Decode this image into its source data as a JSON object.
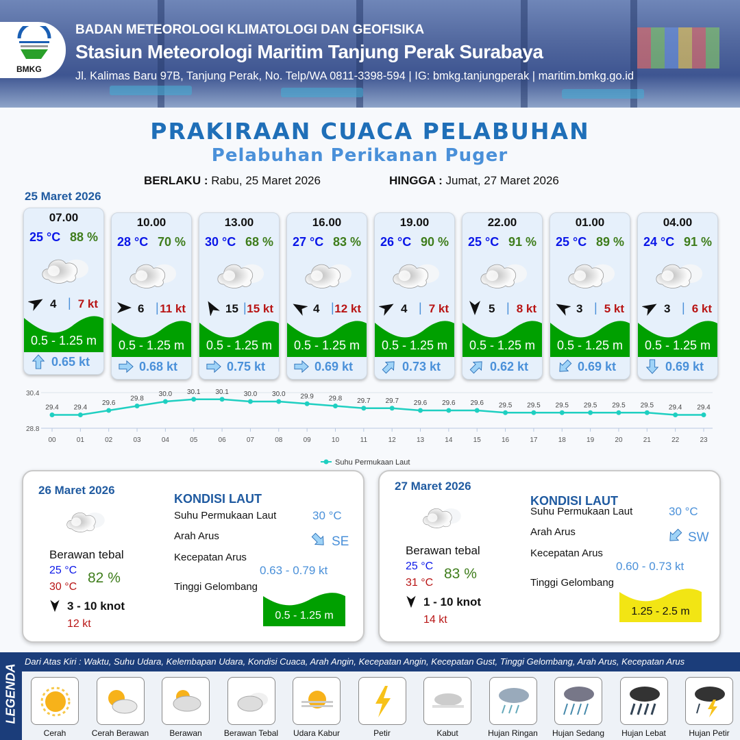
{
  "header": {
    "org": "BADAN METEOROLOGI KLIMATOLOGI DAN GEOFISIKA",
    "station": "Stasiun Meteorologi Maritim Tanjung Perak Surabaya",
    "address": "Jl. Kalimas Baru 97B, Tanjung Perak, No. Telp/WA 0811-3398-594 | IG: bmkg.tanjungperak | maritim.bmkg.go.id",
    "logo_text": "BMKG"
  },
  "title": "PRAKIRAAN CUACA PELABUHAN",
  "subtitle": "Pelabuhan Perikanan Puger",
  "validity": {
    "from_label": "BERLAKU :",
    "from": "Rabu, 25 Maret 2026",
    "to_label": "HINGGA :",
    "to": "Jumat, 27 Maret 2026"
  },
  "day1": {
    "date": "25 Maret 2026",
    "cards": [
      {
        "time": "07.00",
        "temp": "25 °C",
        "hum": "88 %",
        "cond": "Berawan Tebal",
        "wind_dir_deg": 60,
        "wind": "4",
        "gust": "7 kt",
        "wave": "0.5 - 1.25 m",
        "cur_dir_deg": 0,
        "cur": "0.65 kt"
      },
      {
        "time": "10.00",
        "temp": "28 °C",
        "hum": "70 %",
        "cond": "Berawan Tebal",
        "wind_dir_deg": 90,
        "wind": "6",
        "gust": "11 kt",
        "wave": "0.5 - 1.25 m",
        "cur_dir_deg": 90,
        "cur": "0.68 kt"
      },
      {
        "time": "13.00",
        "temp": "30 °C",
        "hum": "68 %",
        "cond": "Berawan Tebal",
        "wind_dir_deg": -30,
        "wind": "15",
        "gust": "15 kt",
        "wave": "0.5 - 1.25 m",
        "cur_dir_deg": 90,
        "cur": "0.75 kt"
      },
      {
        "time": "16.00",
        "temp": "27 °C",
        "hum": "83 %",
        "cond": "Berawan Tebal",
        "wind_dir_deg": -60,
        "wind": "4",
        "gust": "12 kt",
        "wave": "0.5 - 1.25 m",
        "cur_dir_deg": 90,
        "cur": "0.69 kt"
      },
      {
        "time": "19.00",
        "temp": "26 °C",
        "hum": "90 %",
        "cond": "Berawan Tebal",
        "wind_dir_deg": 60,
        "wind": "4",
        "gust": "7 kt",
        "wave": "0.5 - 1.25 m",
        "cur_dir_deg": 45,
        "cur": "0.73 kt"
      },
      {
        "time": "22.00",
        "temp": "25 °C",
        "hum": "91 %",
        "cond": "Berawan Tebal",
        "wind_dir_deg": 180,
        "wind": "5",
        "gust": "8 kt",
        "wave": "0.5 - 1.25 m",
        "cur_dir_deg": 45,
        "cur": "0.62 kt"
      },
      {
        "time": "01.00",
        "temp": "25 °C",
        "hum": "89 %",
        "cond": "Berawan Tebal",
        "wind_dir_deg": -60,
        "wind": "3",
        "gust": "5 kt",
        "wave": "0.5 - 1.25 m",
        "cur_dir_deg": 225,
        "cur": "0.69 kt"
      },
      {
        "time": "04.00",
        "temp": "24 °C",
        "hum": "91 %",
        "cond": "Berawan Tebal",
        "wind_dir_deg": 60,
        "wind": "3",
        "gust": "6 kt",
        "wave": "0.5 - 1.25 m",
        "cur_dir_deg": 180,
        "cur": "0.69 kt"
      }
    ]
  },
  "chart_data": {
    "type": "line",
    "x": [
      "00",
      "01",
      "02",
      "03",
      "04",
      "05",
      "06",
      "07",
      "08",
      "09",
      "10",
      "11",
      "12",
      "13",
      "14",
      "15",
      "16",
      "17",
      "18",
      "19",
      "20",
      "21",
      "22",
      "23"
    ],
    "series": [
      {
        "name": "Suhu Permukaan Laut",
        "values": [
          29.4,
          29.4,
          29.6,
          29.8,
          30.0,
          30.1,
          30.1,
          30.0,
          30.0,
          29.9,
          29.8,
          29.7,
          29.7,
          29.6,
          29.6,
          29.6,
          29.5,
          29.5,
          29.5,
          29.5,
          29.5,
          29.5,
          29.4,
          29.4
        ]
      }
    ],
    "y_ticks": [
      "30.4",
      "28.8"
    ],
    "ylim": [
      28.8,
      30.4
    ],
    "color": "#1fcfc1",
    "legend": "bottom",
    "grid": true
  },
  "days": [
    {
      "date": "26 Maret 2026",
      "cond": "Berawan tebal",
      "tmin": "25 °C",
      "tmax": "30 °C",
      "hum": "82 %",
      "wind": "3 - 10 knot",
      "wind_dir_deg": 180,
      "gust": "12 kt",
      "sea_title": "KONDISI LAUT",
      "sst_label": "Suhu Permukaan Laut",
      "sst": "30 °C",
      "dir_label": "Arah Arus",
      "dir": "SE",
      "cur_dir_deg": 135,
      "spd_label": "Kecepatan Arus",
      "spd": "0.63  - 0.79 kt",
      "wave_label": "Tinggi Gelombang",
      "wave": "0.5 - 1.25 m",
      "wave_color": "#00a000",
      "wave_text_color": "#ffffff"
    },
    {
      "date": "27 Maret 2026",
      "cond": "Berawan tebal",
      "tmin": "25 °C",
      "tmax": "31 °C",
      "hum": "83 %",
      "wind": "1 - 10 knot",
      "wind_dir_deg": 180,
      "gust": "14 kt",
      "sea_title": "KONDISI LAUT",
      "sst_label": "Suhu Permukaan Laut",
      "sst": "30 °C",
      "dir_label": "Arah Arus",
      "dir": "SW",
      "cur_dir_deg": 225,
      "spd_label": "Kecepatan Arus",
      "spd": "0.60 - 0.73 kt",
      "wave_label": "Tinggi Gelombang",
      "wave": "1.25 - 2.5 m",
      "wave_color": "#f2e514",
      "wave_text_color": "#111111"
    }
  ],
  "legend": {
    "title": "LEGENDA",
    "desc": "Dari Atas Kiri : Waktu, Suhu Udara, Kelembapan Udara, Kondisi Cuaca, Arah Angin, Kecepatan Angin, Kecepatan Gust, Tinggi Gelombang, Arah Arus, Kecepatan Arus",
    "items": [
      {
        "label": "Cerah",
        "icon": "sun-icon"
      },
      {
        "label": "Cerah Berawan",
        "icon": "sun-cloud-icon"
      },
      {
        "label": "Berawan",
        "icon": "cloudy-icon"
      },
      {
        "label": "Berawan Tebal",
        "icon": "overcast-icon"
      },
      {
        "label": "Udara Kabur",
        "icon": "haze-icon"
      },
      {
        "label": "Petir",
        "icon": "lightning-icon"
      },
      {
        "label": "Kabut",
        "icon": "fog-icon"
      },
      {
        "label": "Hujan Ringan",
        "icon": "light-rain-icon"
      },
      {
        "label": "Hujan Sedang",
        "icon": "moderate-rain-icon"
      },
      {
        "label": "Hujan Lebat",
        "icon": "heavy-rain-icon"
      },
      {
        "label": "Hujan Petir",
        "icon": "thunderstorm-icon"
      }
    ]
  },
  "colors": {
    "title": "#1f6fb8",
    "wave_green": "#00a000",
    "temp": "#0a16e8",
    "humidity": "#3f7d1c",
    "gust": "#b81414",
    "current": "#4a90d9"
  }
}
